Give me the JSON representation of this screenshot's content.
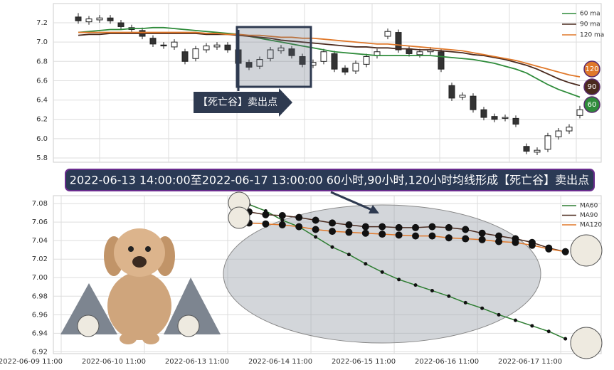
{
  "banner": "2022-06-13 14:00:00至2022-06-17 13:00:00 60小时,90小时,120小时均线形成【死亡谷】卖出点",
  "chart_data": [
    {
      "type": "candlestick",
      "annotation": "【死亡谷】卖出点",
      "grid": true,
      "legend": "upper right",
      "ylim": [
        5.756,
        7.399
      ],
      "yticks": [
        5.8,
        {
          "value": 6,
          "label": "6.0"
        },
        6.2,
        6.4,
        6.6,
        6.8,
        {
          "value": 7,
          "label": "7.0"
        },
        7.2
      ],
      "open": [
        7.26,
        7.21,
        7.23,
        7.25,
        7.2,
        7.15,
        7.12,
        7.04,
        6.97,
        6.95,
        6.9,
        6.83,
        6.92,
        6.95,
        6.97,
        6.92,
        6.79,
        6.75,
        6.83,
        6.91,
        6.93,
        6.85,
        6.76,
        6.8,
        6.88,
        6.73,
        6.7,
        6.77,
        6.86,
        7.06,
        7.1,
        6.93,
        6.87,
        6.9,
        6.9,
        6.55,
        6.43,
        6.44,
        6.3,
        6.23,
        6.21,
        6.21,
        5.92,
        5.86,
        5.89,
        6.02,
        6.08,
        6.24
      ],
      "high": [
        7.3,
        7.27,
        7.28,
        7.28,
        7.23,
        7.18,
        7.15,
        7.07,
        7.0,
        7.03,
        6.93,
        6.96,
        6.99,
        7.0,
        7.0,
        6.95,
        6.82,
        6.85,
        6.95,
        6.97,
        6.96,
        6.88,
        6.82,
        6.93,
        6.91,
        6.76,
        6.81,
        6.88,
        6.93,
        7.14,
        7.13,
        6.96,
        6.93,
        6.95,
        6.93,
        6.58,
        6.48,
        6.47,
        6.33,
        6.26,
        6.25,
        6.24,
        5.95,
        5.91,
        6.06,
        6.11,
        6.15,
        6.34
      ],
      "low": [
        7.19,
        7.18,
        7.2,
        7.19,
        7.13,
        7.1,
        7.03,
        6.95,
        6.93,
        6.92,
        6.77,
        6.8,
        6.89,
        6.92,
        6.89,
        6.75,
        6.71,
        6.72,
        6.8,
        6.88,
        6.83,
        6.74,
        6.73,
        6.77,
        6.69,
        6.66,
        6.67,
        6.74,
        6.83,
        7.03,
        6.89,
        6.85,
        6.84,
        6.87,
        6.69,
        6.39,
        6.4,
        6.27,
        6.19,
        6.17,
        6.18,
        6.12,
        5.84,
        5.83,
        5.86,
        5.99,
        6.05,
        6.21
      ],
      "close": [
        7.22,
        7.24,
        7.25,
        7.22,
        7.16,
        7.13,
        7.06,
        6.98,
        6.96,
        7.0,
        6.8,
        6.93,
        6.96,
        6.97,
        6.92,
        6.78,
        6.74,
        6.82,
        6.92,
        6.94,
        6.86,
        6.77,
        6.79,
        6.9,
        6.72,
        6.69,
        6.78,
        6.85,
        6.9,
        7.11,
        6.92,
        6.88,
        6.9,
        6.92,
        6.72,
        6.42,
        6.45,
        6.3,
        6.22,
        6.2,
        6.22,
        6.15,
        5.87,
        5.88,
        6.03,
        6.08,
        6.12,
        6.3
      ],
      "series": [
        {
          "name": "60 ma",
          "badge": "60",
          "color": "#2e8b3a",
          "values": [
            7.1,
            7.11,
            7.12,
            7.13,
            7.13,
            7.14,
            7.14,
            7.15,
            7.15,
            7.14,
            7.13,
            7.12,
            7.11,
            7.1,
            7.09,
            7.08,
            7.06,
            7.04,
            7.02,
            7.0,
            6.98,
            6.96,
            6.94,
            6.92,
            6.9,
            6.89,
            6.88,
            6.87,
            6.86,
            6.86,
            6.86,
            6.86,
            6.86,
            6.86,
            6.85,
            6.84,
            6.83,
            6.82,
            6.8,
            6.78,
            6.75,
            6.72,
            6.68,
            6.62,
            6.56,
            6.51,
            6.47,
            6.43
          ]
        },
        {
          "name": "90 ma",
          "badge": "90",
          "color": "#4a2a1e",
          "values": [
            7.07,
            7.08,
            7.08,
            7.09,
            7.09,
            7.09,
            7.09,
            7.09,
            7.09,
            7.09,
            7.09,
            7.09,
            7.08,
            7.08,
            7.08,
            7.07,
            7.06,
            7.05,
            7.04,
            7.02,
            7.01,
            7.0,
            6.99,
            6.98,
            6.97,
            6.96,
            6.95,
            6.95,
            6.94,
            6.94,
            6.93,
            6.93,
            6.92,
            6.92,
            6.91,
            6.9,
            6.89,
            6.87,
            6.86,
            6.84,
            6.82,
            6.79,
            6.76,
            6.72,
            6.67,
            6.62,
            6.58,
            6.55
          ]
        },
        {
          "name": "120 ma",
          "badge": "120",
          "color": "#e0782a",
          "values": [
            7.1,
            7.1,
            7.1,
            7.1,
            7.1,
            7.1,
            7.1,
            7.1,
            7.1,
            7.1,
            7.1,
            7.1,
            7.09,
            7.09,
            7.08,
            7.08,
            7.07,
            7.07,
            7.06,
            7.05,
            7.05,
            7.04,
            7.04,
            7.03,
            7.02,
            7.01,
            7.0,
            6.99,
            6.98,
            6.98,
            6.97,
            6.96,
            6.95,
            6.94,
            6.93,
            6.92,
            6.91,
            6.89,
            6.87,
            6.85,
            6.83,
            6.81,
            6.78,
            6.75,
            6.72,
            6.69,
            6.66,
            6.64
          ]
        }
      ]
    },
    {
      "type": "line",
      "grid": true,
      "legend": "upper right",
      "x": [
        0,
        1,
        2,
        3,
        4,
        5,
        6,
        7,
        8,
        9,
        10,
        11,
        12,
        13,
        14,
        15,
        16,
        17,
        18,
        19
      ],
      "xlim": [
        -11.75,
        21.15
      ],
      "xticks": [
        {
          "value": -11.28,
          "label": "2022-06-09 11:00"
        },
        {
          "value": -6.28,
          "label": "2022-06-10 11:00"
        },
        {
          "value": -1.28,
          "label": "2022-06-13 11:00"
        },
        {
          "value": 3.72,
          "label": "2022-06-14 11:00"
        },
        {
          "value": 8.72,
          "label": "2022-06-15 11:00"
        },
        {
          "value": 13.72,
          "label": "2022-06-16 11:00"
        },
        {
          "value": 18.72,
          "label": "2022-06-17 11:00"
        }
      ],
      "ylim": [
        6.918,
        7.0885
      ],
      "yticks": [
        6.92,
        6.94,
        6.96,
        6.98,
        {
          "value": 7,
          "label": "7.00"
        },
        7.02,
        7.04,
        7.06,
        7.08
      ],
      "series": [
        {
          "name": "MA60",
          "color": "#2e7d32",
          "values": [
            7.079,
            7.072,
            7.062,
            7.055,
            7.044,
            7.033,
            7.025,
            7.015,
            7.006,
            6.998,
            6.992,
            6.986,
            6.98,
            6.973,
            6.967,
            6.96,
            6.954,
            6.948,
            6.942,
            6.934
          ]
        },
        {
          "name": "MA90",
          "color": "#4a2a1e",
          "values": [
            7.071,
            7.068,
            7.067,
            7.065,
            7.062,
            7.059,
            7.057,
            7.055,
            7.055,
            7.054,
            7.054,
            7.055,
            7.054,
            7.052,
            7.048,
            7.045,
            7.042,
            7.038,
            7.032,
            7.028
          ]
        },
        {
          "name": "MA120",
          "color": "#e0782a",
          "values": [
            7.059,
            7.058,
            7.057,
            7.055,
            7.052,
            7.05,
            7.049,
            7.048,
            7.047,
            7.046,
            7.045,
            7.045,
            7.043,
            7.042,
            7.041,
            7.039,
            7.038,
            7.035,
            7.031,
            7.028
          ]
        }
      ]
    }
  ]
}
